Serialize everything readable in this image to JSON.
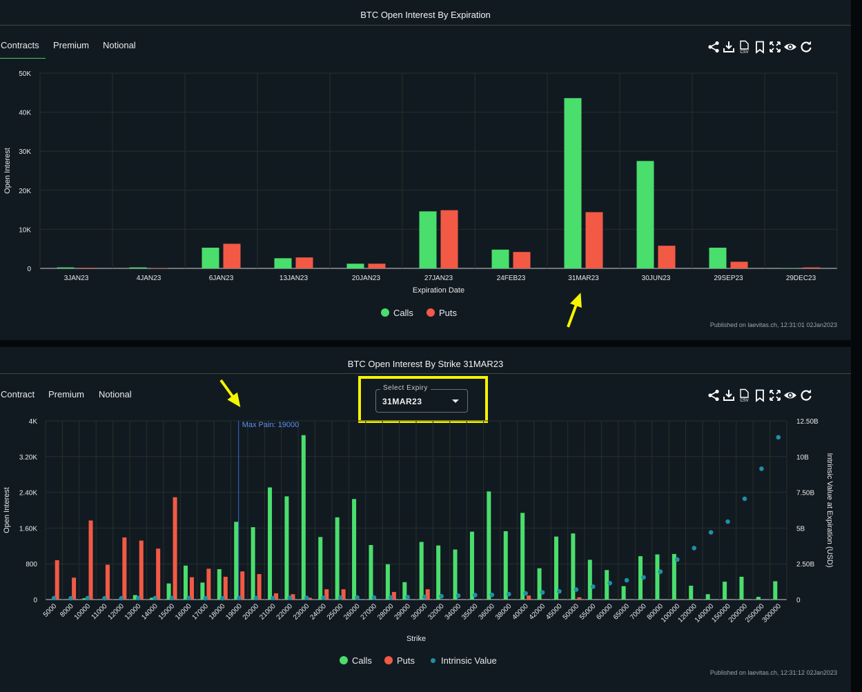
{
  "panel1": {
    "title": "BTC Open Interest By Expiration",
    "tabs": [
      "Contracts",
      "Premium",
      "Notional"
    ],
    "published": "Published on laevitas.ch, 12:31:01 02Jan2023"
  },
  "panel2": {
    "title": "BTC Open Interest By Strike 31MAR23",
    "tabs": [
      "Contract",
      "Premium",
      "Notional"
    ],
    "select_label": "Select Expiry",
    "select_value": "31MAR23",
    "published": "Published on laevitas.ch, 12:31:12 02Jan2023"
  },
  "colors": {
    "calls": "#4ade6d",
    "puts": "#f25a45",
    "intrinsic": "#1f8fa6",
    "annotation": "#f5f500",
    "max_pain_line": "#3b6fd1"
  },
  "toolbar_icons": [
    "share-icon",
    "download-icon",
    "csv-icon",
    "bookmark-icon",
    "fullscreen-icon",
    "eye-icon",
    "refresh-icon"
  ],
  "chart_data": [
    {
      "type": "bar",
      "title": "BTC Open Interest By Expiration",
      "xlabel": "Expiration Date",
      "ylabel": "Open Interest",
      "ylim": [
        0,
        50000
      ],
      "yticks": [
        0,
        10000,
        20000,
        30000,
        40000,
        50000
      ],
      "ytick_labels": [
        "0",
        "10K",
        "20K",
        "30K",
        "40K",
        "50K"
      ],
      "grid": true,
      "legend": "bottom-center",
      "categories": [
        "3JAN23",
        "4JAN23",
        "6JAN23",
        "13JAN23",
        "20JAN23",
        "27JAN23",
        "24FEB23",
        "31MAR23",
        "30JUN23",
        "29SEP23",
        "29DEC23"
      ],
      "series": [
        {
          "name": "Calls",
          "values": [
            250,
            250,
            5300,
            2600,
            1200,
            14600,
            4800,
            43600,
            27500,
            5300,
            100
          ]
        },
        {
          "name": "Puts",
          "values": [
            150,
            100,
            6300,
            2800,
            1200,
            14900,
            4200,
            14400,
            5800,
            1700,
            250
          ]
        }
      ]
    },
    {
      "type": "bar",
      "title": "BTC Open Interest By Strike 31MAR23",
      "xlabel": "Strike",
      "ylabel": "Open Interest",
      "y2label": "Intrinsic Value at Expiration (USD)",
      "ylim": [
        0,
        4000
      ],
      "y2lim": [
        0,
        12500000000
      ],
      "yticks": [
        0,
        800,
        1600,
        2400,
        3200,
        4000
      ],
      "ytick_labels": [
        "0",
        "800",
        "1.60K",
        "2.40K",
        "3.20K",
        "4K"
      ],
      "y2ticks": [
        0,
        2500000000,
        5000000000,
        7500000000,
        10000000000,
        12500000000
      ],
      "y2tick_labels": [
        "0",
        "2.50B",
        "5B",
        "7.50B",
        "10B",
        "12.50B"
      ],
      "grid": true,
      "legend": "bottom-center",
      "max_pain_label": "Max Pain: 19000",
      "max_pain_strike": "19000",
      "categories": [
        "5000",
        "8000",
        "10000",
        "11000",
        "12000",
        "13000",
        "14000",
        "15000",
        "16000",
        "17000",
        "18000",
        "19000",
        "20000",
        "21000",
        "22000",
        "23000",
        "24000",
        "25000",
        "26000",
        "27000",
        "28000",
        "29000",
        "30000",
        "32000",
        "34000",
        "35000",
        "36000",
        "38000",
        "40000",
        "42000",
        "45000",
        "50000",
        "55000",
        "60000",
        "65000",
        "70000",
        "80000",
        "100000",
        "120000",
        "140000",
        "150000",
        "200000",
        "250000",
        "300000"
      ],
      "series": [
        {
          "name": "Calls",
          "values": [
            0,
            0,
            30,
            0,
            0,
            100,
            40,
            360,
            760,
            380,
            680,
            1740,
            1620,
            2510,
            2310,
            3680,
            1400,
            1840,
            2250,
            1220,
            790,
            390,
            1290,
            1210,
            1120,
            1520,
            2420,
            1530,
            1940,
            700,
            1410,
            1480,
            890,
            660,
            300,
            970,
            1010,
            1020,
            310,
            120,
            400,
            510,
            60,
            410
          ]
        },
        {
          "name": "Puts",
          "values": [
            880,
            490,
            1770,
            780,
            1390,
            1320,
            1140,
            2290,
            500,
            690,
            510,
            630,
            570,
            140,
            120,
            40,
            230,
            230,
            0,
            0,
            170,
            0,
            230,
            0,
            0,
            0,
            0,
            0,
            90,
            0,
            0,
            50,
            0,
            0,
            0,
            0,
            0,
            0,
            0,
            0,
            0,
            0,
            0,
            0
          ]
        },
        {
          "name": "Intrinsic Value",
          "values": [
            100000000,
            90000000,
            100000000,
            90000000,
            90000000,
            100000000,
            100000000,
            100000000,
            100000000,
            90000000,
            90000000,
            100000000,
            100000000,
            100000000,
            110000000,
            110000000,
            120000000,
            130000000,
            140000000,
            140000000,
            150000000,
            170000000,
            190000000,
            230000000,
            270000000,
            310000000,
            330000000,
            380000000,
            430000000,
            500000000,
            570000000,
            700000000,
            900000000,
            1150000000,
            1350000000,
            1550000000,
            1950000000,
            2800000000,
            3600000000,
            4700000000,
            5450000000,
            7050000000,
            9150000000,
            11350000000
          ]
        }
      ]
    }
  ]
}
